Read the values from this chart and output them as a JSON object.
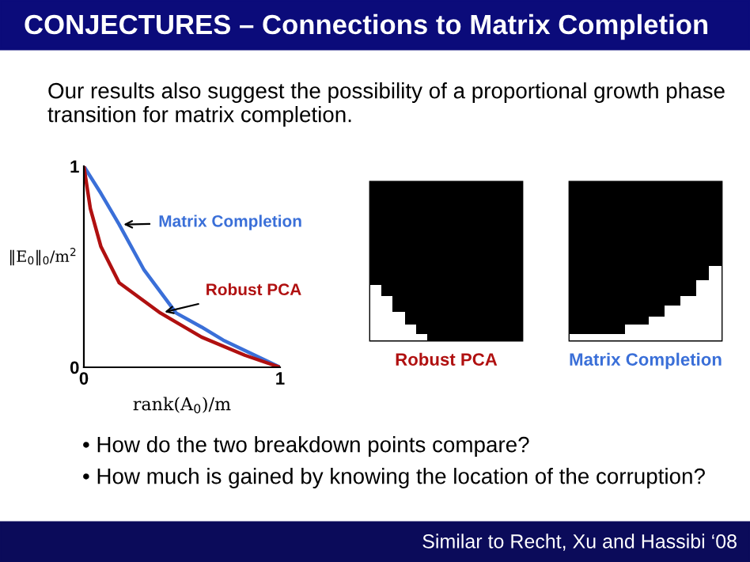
{
  "chart_data": {
    "type": "line",
    "title": "CONJECTURES – Connections to Matrix Completion",
    "subtitle": "Our results also suggest the possibility of a proportional growth phase transition for matrix completion.",
    "xlabel": "rank(A$_{0}$)/m",
    "ylabel": "‖E$_{0}$‖$_{0}$/m$^{2}$",
    "xlim": [
      0,
      1
    ],
    "ylim": [
      0,
      1
    ],
    "xticks": [
      0,
      1
    ],
    "yticks": [
      0,
      1
    ],
    "series": [
      {
        "name": "Matrix Completion",
        "color": "#3a6fd8",
        "x": [
          0,
          0.087,
          0.18,
          0.305,
          0.47,
          0.6,
          0.71,
          1
        ],
        "values": [
          1,
          0.865,
          0.71,
          0.487,
          0.27,
          0.2,
          0.135,
          0
        ]
      },
      {
        "name": "Robust PCA",
        "color": "#b01010",
        "x": [
          0,
          0.033,
          0.087,
          0.18,
          0.39,
          0.6,
          0.82,
          1
        ],
        "values": [
          1,
          0.79,
          0.6,
          0.42,
          0.27,
          0.15,
          0.06,
          0
        ]
      }
    ],
    "annotations": [
      "• How do the two breakdown points compare?",
      "• How much is gained by knowing the location of the corruption?",
      "Similar to Recht, Xu and Hassibi ‘08"
    ]
  }
}
